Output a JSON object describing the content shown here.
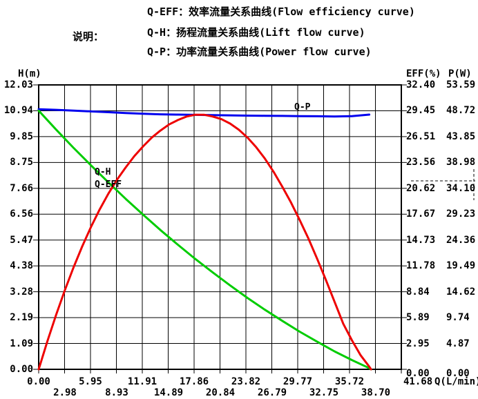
{
  "legend": {
    "label": "说明：",
    "lines": [
      "Q-EFF：效率流量关系曲线(Flow efficiency curve)",
      "Q-H：扬程流量关系曲线(Lift flow curve)",
      "Q-P：功率流量关系曲线(Power flow curve)"
    ]
  },
  "axes": {
    "left": {
      "title": "H(m)",
      "ticks": [
        "12.03",
        "10.94",
        "9.85",
        "8.75",
        "7.66",
        "6.56",
        "5.47",
        "4.38",
        "3.28",
        "2.19",
        "1.09",
        "0.00"
      ]
    },
    "right_eff": {
      "title": "EFF(%)",
      "ticks": [
        "32.40",
        "29.45",
        "26.51",
        "23.56",
        "20.62",
        "17.67",
        "14.73",
        "11.78",
        "8.84",
        "5.89",
        "2.95",
        "0.00"
      ]
    },
    "right_p": {
      "title": "P(W)",
      "ticks": [
        "53.59",
        "48.72",
        "43.85",
        "38.98",
        "34.10",
        "29.23",
        "24.36",
        "19.49",
        "14.62",
        "9.74",
        "4.87",
        "0.00"
      ]
    },
    "x": {
      "ticks_upper": [
        "0.00",
        "5.95",
        "11.91",
        "17.86",
        "23.82",
        "29.77",
        "35.72"
      ],
      "ticks_lower": [
        "2.98",
        "8.93",
        "14.89",
        "20.84",
        "26.79",
        "32.75",
        "38.70"
      ],
      "last_tick": "41.68",
      "unit": "Q(L/min)"
    }
  },
  "curve_labels": {
    "qh": "Q-H",
    "qeff": "Q-EFF",
    "qp": "Q-P"
  },
  "colors": {
    "eff_curve": "#ee0000",
    "lift_curve": "#00cc00",
    "power_curve": "#0000ee",
    "grid": "#000000"
  },
  "chart_data": {
    "type": "line",
    "title": "Pump performance curves",
    "xlabel": "Q(L/min)",
    "x_range": [
      0,
      41.68
    ],
    "grid": true,
    "y_axes": [
      {
        "name": "H(m)",
        "range": [
          0,
          12.03
        ]
      },
      {
        "name": "EFF(%)",
        "range": [
          0,
          32.4
        ]
      },
      {
        "name": "P(W)",
        "range": [
          0,
          53.59
        ]
      }
    ],
    "series": [
      {
        "name": "Q-P",
        "axis": "P(W)",
        "color": "#0000ee",
        "x": [
          0,
          2,
          4,
          6,
          8,
          10,
          12,
          14,
          16,
          18,
          20,
          22,
          24,
          26,
          28,
          30,
          32,
          34,
          36,
          37,
          38
        ],
        "y": [
          49.0,
          48.9,
          48.75,
          48.6,
          48.45,
          48.3,
          48.15,
          48.05,
          48.0,
          47.95,
          47.9,
          47.85,
          47.8,
          47.78,
          47.75,
          47.7,
          47.68,
          47.65,
          47.7,
          47.85,
          48.0
        ]
      },
      {
        "name": "Q-H",
        "axis": "H(m)",
        "color": "#00cc00",
        "x": [
          0,
          2,
          4,
          6,
          8,
          10,
          12,
          14,
          16,
          18,
          20,
          22,
          24,
          26,
          28,
          30,
          32,
          34,
          36,
          38,
          38.2
        ],
        "y": [
          10.94,
          10.14,
          9.37,
          8.63,
          7.91,
          7.21,
          6.54,
          5.89,
          5.27,
          4.67,
          4.1,
          3.55,
          3.02,
          2.52,
          2.05,
          1.59,
          1.17,
          0.76,
          0.39,
          0.05,
          0
        ]
      },
      {
        "name": "Q-EFF",
        "axis": "EFF(%)",
        "color": "#ee0000",
        "x": [
          0,
          1,
          2,
          3,
          4,
          5,
          6,
          7,
          8,
          9,
          10,
          11,
          12,
          13,
          14,
          15,
          16,
          17,
          18,
          19,
          20,
          21,
          22,
          23,
          24,
          25,
          26,
          27,
          28,
          29,
          30,
          31,
          32,
          33,
          34,
          35,
          36,
          37,
          38,
          38.2
        ],
        "y": [
          0,
          3.2,
          6.2,
          9.0,
          11.6,
          14.0,
          16.2,
          18.2,
          20.0,
          21.6,
          23.0,
          24.3,
          25.4,
          26.4,
          27.2,
          27.9,
          28.4,
          28.8,
          29.0,
          29.0,
          28.8,
          28.5,
          28.0,
          27.3,
          26.4,
          25.3,
          24.0,
          22.5,
          20.8,
          19.0,
          17.0,
          14.9,
          12.6,
          10.2,
          7.7,
          5.2,
          3.3,
          1.6,
          0.3,
          0
        ]
      }
    ]
  }
}
